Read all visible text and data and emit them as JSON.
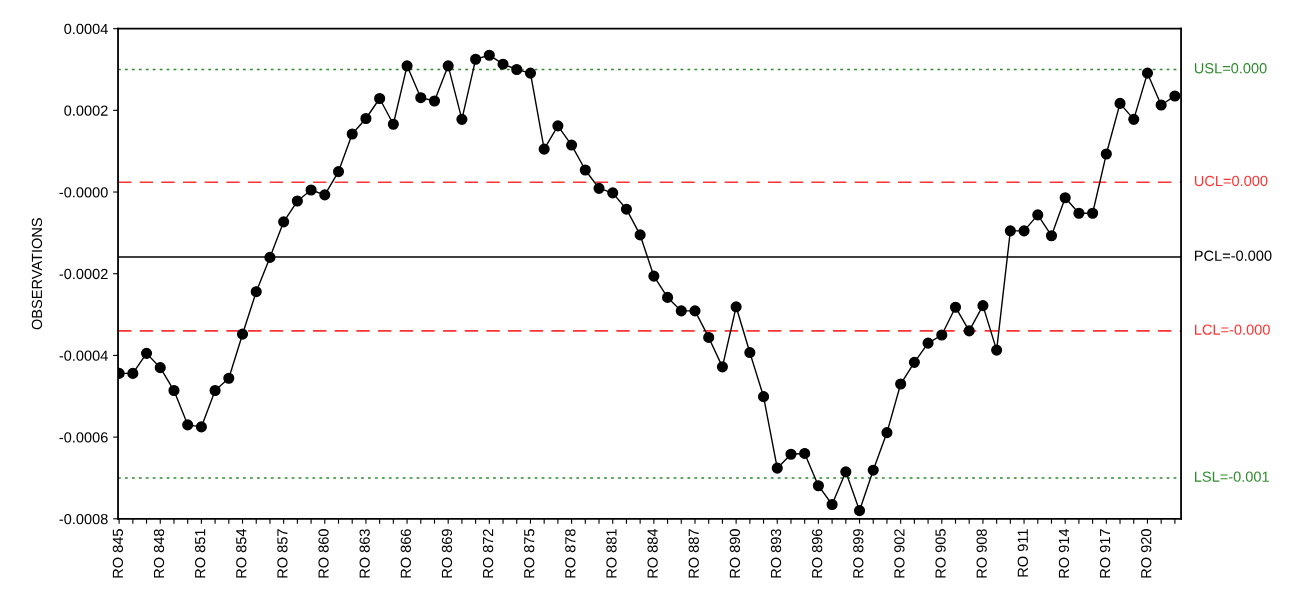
{
  "chart_data": {
    "type": "line",
    "ylabel": "OBSERVATIONS",
    "categories": [
      "RO 845",
      null,
      null,
      "RO 848",
      null,
      null,
      "RO 851",
      null,
      null,
      "RO 854",
      null,
      null,
      "RO 857",
      null,
      null,
      "RO 860",
      null,
      null,
      "RO 863",
      null,
      null,
      "RO 866",
      null,
      null,
      "RO 869",
      null,
      null,
      "RO 872",
      null,
      null,
      "RO 875",
      null,
      null,
      "RO 878",
      null,
      null,
      "RO 881",
      null,
      null,
      "RO 884",
      null,
      null,
      "RO 887",
      null,
      null,
      "RO 890",
      null,
      null,
      "RO 893",
      null,
      null,
      "RO 896",
      null,
      null,
      "RO 899",
      null,
      null,
      "RO 902",
      null,
      null,
      "RO 905",
      null,
      null,
      "RO 908",
      null,
      null,
      "RO 911",
      null,
      null,
      "RO 914",
      null,
      null,
      "RO 917",
      null,
      null,
      "RO 920",
      null,
      null
    ],
    "series": [
      {
        "color": "#000000",
        "values": [
          -0.000444,
          -0.000444,
          -0.000395,
          -0.00043,
          -0.000486,
          -0.00057,
          -0.000575,
          -0.000486,
          -0.000456,
          -0.000348,
          -0.000244,
          -0.00016,
          -7.3e-05,
          -2.2e-05,
          5e-06,
          -7e-06,
          5e-05,
          0.000142,
          0.00018,
          0.000229,
          0.000166,
          0.000309,
          0.000231,
          0.000223,
          0.000309,
          0.000178,
          0.000325,
          0.000335,
          0.000313,
          0.0003,
          0.000291,
          0.000105,
          0.000162,
          0.000115,
          5.4e-05,
          9e-06,
          -2e-06,
          -4.2e-05,
          -0.000105,
          -0.000206,
          -0.000258,
          -0.000291,
          -0.000291,
          -0.000356,
          -0.000428,
          -0.000281,
          -0.000393,
          -0.000501,
          -0.000676,
          -0.000642,
          -0.00064,
          -0.000719,
          -0.000765,
          -0.000685,
          -0.00078,
          -0.000681,
          -0.000589,
          -0.00047,
          -0.000417,
          -0.00037,
          -0.00035,
          -0.000282,
          -0.00034,
          -0.000278,
          -0.000387,
          -9.5e-05,
          -9.5e-05,
          -5.6e-05,
          -0.000107,
          -1.4e-05,
          -5.2e-05,
          -5.2e-05,
          9.3e-05,
          0.000217,
          0.000178,
          0.000291,
          0.000213,
          0.000235
        ]
      }
    ],
    "ylim": [
      -0.0008,
      0.0004
    ],
    "yticks": [
      -0.0008,
      -0.0006,
      -0.0004,
      -0.0002,
      {
        "value": 0,
        "label": "-0.0000"
      },
      0.0002,
      0.0004
    ],
    "ref_lines": [
      {
        "axis": "y",
        "value": 0.0003,
        "label": "USL=0.000",
        "color": "#2e8b2e",
        "line_style": "dotted"
      },
      {
        "axis": "y",
        "value": 2.4e-05,
        "label": "UCL=0.000",
        "color": "#ff3333",
        "line_style": "dashed"
      },
      {
        "axis": "y",
        "value": -0.000159,
        "label": "PCL=-0.000",
        "color": "#000000",
        "line_style": "solid"
      },
      {
        "axis": "y",
        "value": -0.00034,
        "label": "LCL=-0.000",
        "color": "#ff3333",
        "line_style": "dashed"
      },
      {
        "axis": "y",
        "value": -0.0007,
        "label": "LSL=-0.001",
        "color": "#2e8b2e",
        "line_style": "dotted"
      }
    ],
    "marker": "circle",
    "line_style": "solid",
    "grid": false,
    "legend": false
  }
}
